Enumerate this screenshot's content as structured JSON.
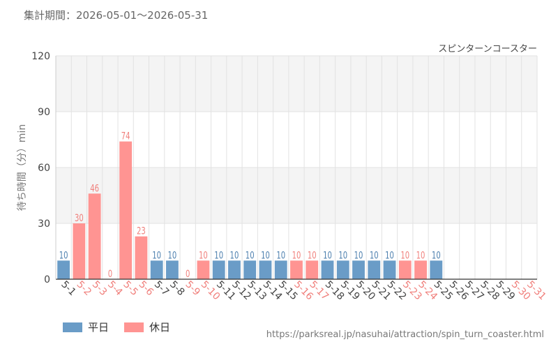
{
  "header": {
    "period_label": "集計期間：2026-05-01～2026-05-31"
  },
  "footer": {
    "source_url": "https://parksreal.jp/nasuhai/attraction/spin_turn_coaster.html"
  },
  "legend": [
    {
      "label": "平日",
      "color": "#6a9cc7"
    },
    {
      "label": "休日",
      "color": "#ff9492"
    }
  ],
  "colors": {
    "weekday": "#6a9cc7",
    "holiday": "#ff9492",
    "weekday_label": "#4c7fae",
    "holiday_label": "#f07f7b",
    "band": "#f4f4f4",
    "grid": "#e2e2e2"
  },
  "chart_data": {
    "type": "bar",
    "title": "スピンターンコースター",
    "ylabel": "待ち時間（分）min",
    "xlabel": "",
    "ylim": [
      0,
      120
    ],
    "yticks": [
      0,
      30,
      60,
      90,
      120
    ],
    "grid": true,
    "legend_position": "bottom-left",
    "categories": [
      "5-1",
      "5-2",
      "5-3",
      "5-4",
      "5-5",
      "5-6",
      "5-7",
      "5-8",
      "5-9",
      "5-10",
      "5-11",
      "5-12",
      "5-13",
      "5-14",
      "5-15",
      "5-16",
      "5-17",
      "5-18",
      "5-19",
      "5-20",
      "5-21",
      "5-22",
      "5-23",
      "5-24",
      "5-25",
      "5-26",
      "5-27",
      "5-28",
      "5-29",
      "5-30",
      "5-31"
    ],
    "values": [
      10,
      30,
      46,
      0,
      74,
      23,
      10,
      10,
      0,
      10,
      10,
      10,
      10,
      10,
      10,
      10,
      10,
      10,
      10,
      10,
      10,
      10,
      10,
      10,
      10,
      null,
      null,
      null,
      null,
      null,
      null
    ],
    "day_type": [
      "平日",
      "休日",
      "休日",
      "休日",
      "休日",
      "休日",
      "平日",
      "平日",
      "休日",
      "休日",
      "平日",
      "平日",
      "平日",
      "平日",
      "平日",
      "休日",
      "休日",
      "平日",
      "平日",
      "平日",
      "平日",
      "平日",
      "休日",
      "休日",
      "平日",
      "平日",
      "平日",
      "平日",
      "平日",
      "休日",
      "休日"
    ]
  }
}
